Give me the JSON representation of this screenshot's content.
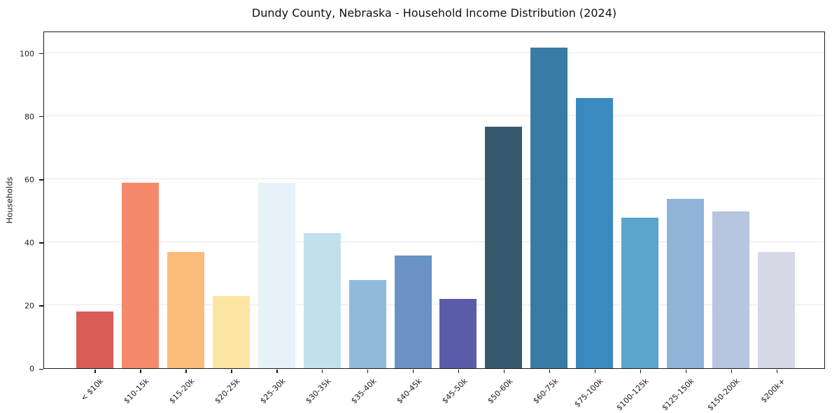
{
  "title": "Dundy County, Nebraska - Household Income Distribution (2024)",
  "chart_data": {
    "type": "bar",
    "title": "Dundy County, Nebraska - Household Income Distribution (2024)",
    "xlabel": "",
    "ylabel": "Households",
    "categories": [
      "< $10k",
      "$10-15k",
      "$15-20k",
      "$20-25k",
      "$25-30k",
      "$30-35k",
      "$35-40k",
      "$40-45k",
      "$45-50k",
      "$50-60k",
      "$60-75k",
      "$75-100k",
      "$100-125k",
      "$125-150k",
      "$150-200k",
      "$200k+"
    ],
    "values": [
      18,
      59,
      37,
      23,
      59,
      43,
      28,
      36,
      22,
      77,
      102,
      86,
      48,
      54,
      50,
      37
    ],
    "bar_colors": [
      "#d95c55",
      "#f48a6b",
      "#fbbb7a",
      "#fde5a4",
      "#e7f2f8",
      "#c1e0ec",
      "#90badb",
      "#6b92c4",
      "#5a5caa",
      "#36596e",
      "#387ba4",
      "#3a8ac0",
      "#5ba4cb",
      "#8fb4d8",
      "#b6c6de",
      "#d7d8e6"
    ],
    "ylim": [
      0,
      107
    ],
    "yticks": [
      0,
      20,
      40,
      60,
      80,
      100
    ],
    "grid": "horizontal",
    "gridline_color": "#e7e7e7",
    "spine_color": "#1a1a1a",
    "legend": "none",
    "background": "#ffffff"
  }
}
